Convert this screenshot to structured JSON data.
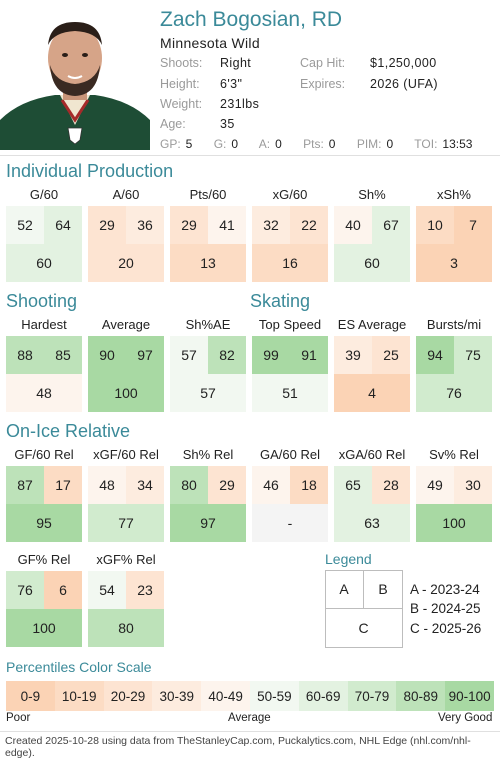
{
  "player": {
    "name": "Zach Bogosian, RD",
    "team": "Minnesota Wild",
    "shoots_label": "Shoots:",
    "shoots": "Right",
    "height_label": "Height:",
    "height": "6'3\"",
    "weight_label": "Weight:",
    "weight": "231lbs",
    "age_label": "Age:",
    "age": "35",
    "caphit_label": "Cap Hit:",
    "caphit": "$1,250,000",
    "expires_label": "Expires:",
    "expires": "2026 (UFA)"
  },
  "season_stats": [
    {
      "label": "GP:",
      "value": "5"
    },
    {
      "label": "G:",
      "value": "0"
    },
    {
      "label": "A:",
      "value": "0"
    },
    {
      "label": "Pts:",
      "value": "0"
    },
    {
      "label": "PIM:",
      "value": "0"
    },
    {
      "label": "TOI:",
      "value": "13:53"
    }
  ],
  "sections": {
    "individual": "Individual Production",
    "shooting": "Shooting",
    "skating": "Skating",
    "onice": "On-Ice Relative",
    "legend": "Legend",
    "scale": "Percentiles Color Scale"
  },
  "individual": [
    {
      "title": "G/60",
      "a": 52,
      "b": 64,
      "c": "60"
    },
    {
      "title": "A/60",
      "a": 29,
      "b": 36,
      "c": "20"
    },
    {
      "title": "Pts/60",
      "a": 29,
      "b": 41,
      "c": "13"
    },
    {
      "title": "xG/60",
      "a": 32,
      "b": 22,
      "c": "16"
    },
    {
      "title": "Sh%",
      "a": 40,
      "b": 67,
      "c": "60"
    },
    {
      "title": "xSh%",
      "a": 10,
      "b": 7,
      "c": "3"
    }
  ],
  "shooting": [
    {
      "title": "Hardest",
      "a": 88,
      "b": 85,
      "c": "48"
    },
    {
      "title": "Average",
      "a": 90,
      "b": 97,
      "c": "100"
    },
    {
      "title": "Sh%AE",
      "a": 57,
      "b": 82,
      "c": "57"
    }
  ],
  "skating": [
    {
      "title": "Top Speed",
      "a": 99,
      "b": 91,
      "c": "51"
    },
    {
      "title": "ES Average",
      "a": 39,
      "b": 25,
      "c": "4"
    },
    {
      "title": "Bursts/mi",
      "a": 94,
      "b": 75,
      "c": "76"
    }
  ],
  "onice": [
    {
      "title": "GF/60 Rel",
      "a": 87,
      "b": 17,
      "c": "95"
    },
    {
      "title": "xGF/60 Rel",
      "a": 48,
      "b": 34,
      "c": "77"
    },
    {
      "title": "Sh% Rel",
      "a": 80,
      "b": 29,
      "c": "97"
    },
    {
      "title": "GA/60 Rel",
      "a": 46,
      "b": 18,
      "c": "-"
    },
    {
      "title": "xGA/60 Rel",
      "a": 65,
      "b": 28,
      "c": "63"
    },
    {
      "title": "Sv% Rel",
      "a": 49,
      "b": 30,
      "c": "100"
    }
  ],
  "onice2": [
    {
      "title": "GF% Rel",
      "a": 76,
      "b": 6,
      "c": "100"
    },
    {
      "title": "xGF% Rel",
      "a": 54,
      "b": 23,
      "c": "80"
    }
  ],
  "legend": {
    "a": "A",
    "b": "B",
    "c": "C",
    "lines": [
      "A - 2023-24",
      "B - 2024-25",
      "C - 2025-26"
    ]
  },
  "scale": {
    "ranges": [
      "0-9",
      "10-19",
      "20-29",
      "30-39",
      "40-49",
      "50-59",
      "60-69",
      "70-79",
      "80-89",
      "90-100"
    ],
    "colors": [
      "#fbd3b5",
      "#fcdcc4",
      "#fde4d2",
      "#fdecdf",
      "#fdf4ed",
      "#f2f8f1",
      "#e3f2e1",
      "#d1ebce",
      "#bde2b9",
      "#a8d9a3"
    ],
    "poor": "Poor",
    "average": "Average",
    "very_good": "Very Good"
  },
  "footer": "Created 2025-10-28 using data from TheStanleyCap.com, Puckalytics.com, NHL Edge (nhl.com/nhl-edge)."
}
